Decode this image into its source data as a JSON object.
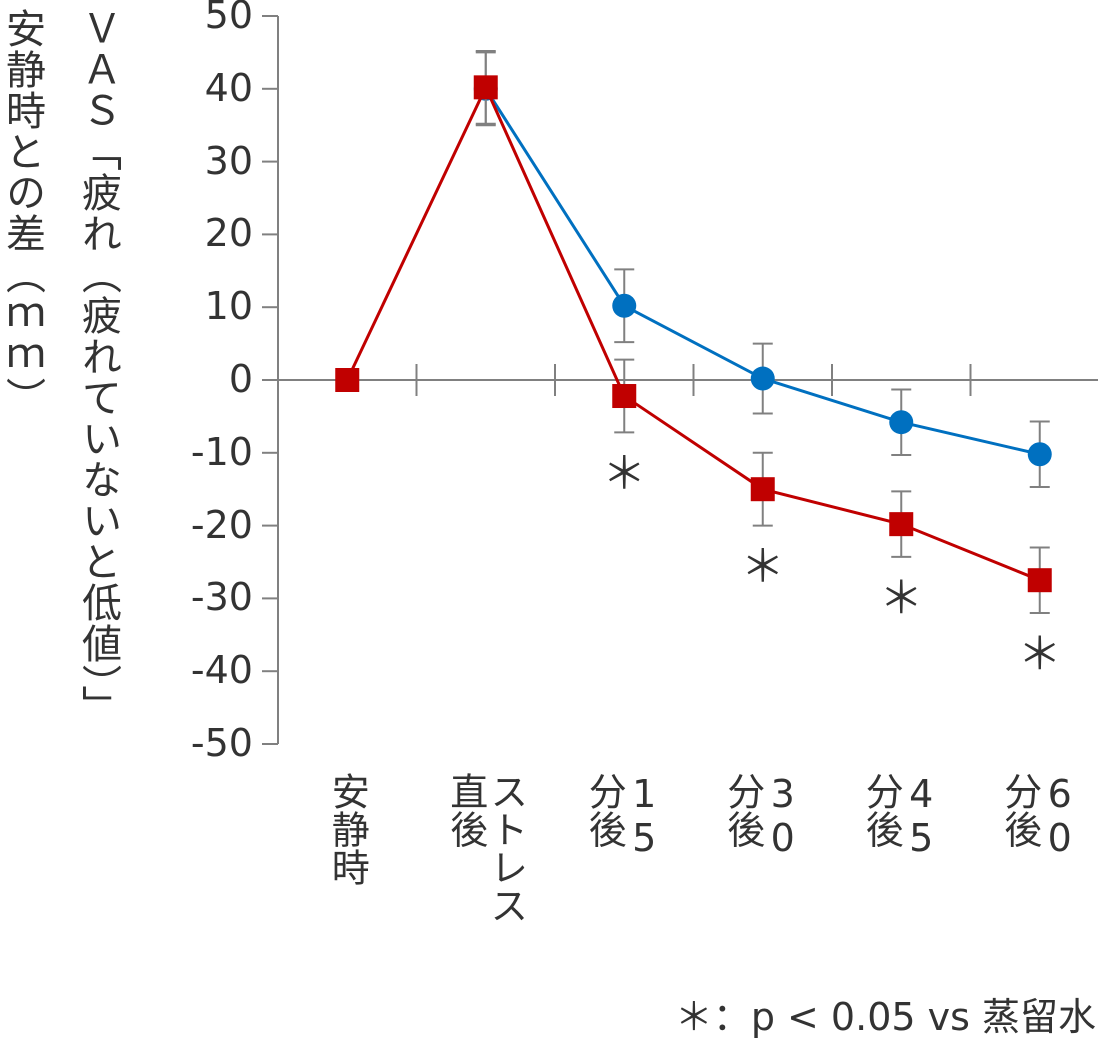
{
  "chart_data": {
    "type": "line",
    "ylabel_outer": "安静時との差（ｍｍ）",
    "ylabel_inner": "ＶＡＳ「疲れ（疲れていないと低値）」",
    "ylim": [
      -50,
      50
    ],
    "yticks": [
      "50",
      "40",
      "30",
      "20",
      "10",
      "0",
      "-10",
      "-20",
      "-30",
      "-40",
      "-50"
    ],
    "categories": [
      [
        "安静時"
      ],
      [
        "ストレス",
        "直後"
      ],
      [
        "15",
        "分後"
      ],
      [
        "30",
        "分後"
      ],
      [
        "45",
        "分後"
      ],
      [
        "60",
        "分後"
      ]
    ],
    "series": [
      {
        "color": "#0070c0",
        "marker": "circle",
        "values": [
          null,
          40,
          10.2,
          0.2,
          -5.8,
          -10.2
        ],
        "errors": [
          null,
          5,
          5,
          4.8,
          4.5,
          4.5
        ]
      },
      {
        "color": "#c00000",
        "marker": "square",
        "values": [
          0,
          40.2,
          -2.2,
          -15,
          -19.8,
          -27.5
        ],
        "errors": [
          null,
          5,
          5,
          5,
          4.5,
          4.5
        ]
      }
    ],
    "significance": [
      "",
      "",
      "＊",
      "＊",
      "＊",
      "＊"
    ],
    "footnote": "＊：p < 0.05 vs 蒸留水",
    "axis_color": "#808080"
  }
}
